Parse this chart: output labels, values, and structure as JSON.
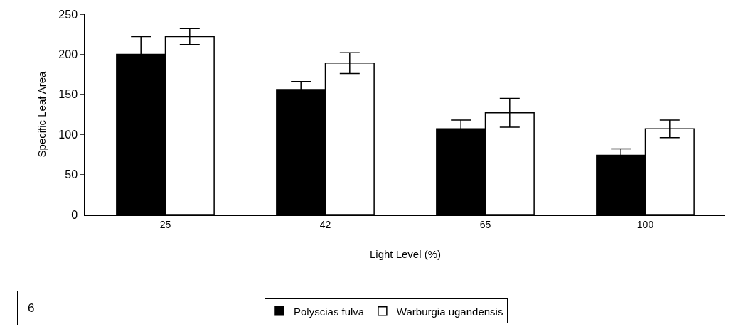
{
  "chart_data": {
    "type": "bar",
    "xlabel": "Light Level (%)",
    "ylabel": "Specific Leaf Area",
    "categories": [
      "25",
      "42",
      "65",
      "100"
    ],
    "series": [
      {
        "name": "Polyscias fulva",
        "color": "#000000",
        "values": [
          200,
          156,
          107,
          74
        ],
        "errors": [
          22,
          10,
          11,
          8
        ]
      },
      {
        "name": "Warburgia ugandensis",
        "color": "#ffffff",
        "values": [
          222,
          189,
          127,
          107
        ],
        "errors": [
          10,
          13,
          18,
          11
        ]
      }
    ],
    "ylim": [
      0,
      250
    ],
    "yticks": [
      0,
      50,
      100,
      150,
      200,
      250
    ],
    "grid": false,
    "legend": "bottom",
    "annotations": [
      "6"
    ]
  }
}
